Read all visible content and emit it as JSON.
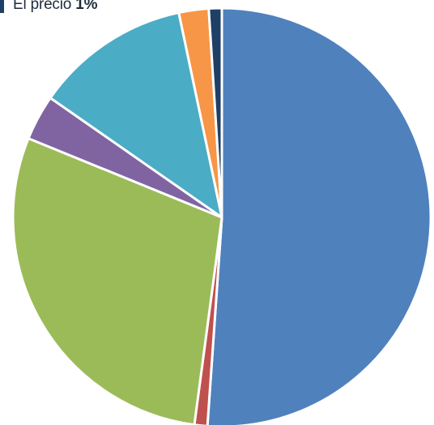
{
  "chart_data": {
    "type": "pie",
    "title": "",
    "start_angle_deg": 0,
    "direction": "clockwise",
    "slices": [
      {
        "value": 51,
        "color": "#4f81bd"
      },
      {
        "value": 1,
        "color": "#c0504d"
      },
      {
        "value": 29,
        "color": "#9bbb59"
      },
      {
        "value": 3.5,
        "color": "#8064a2"
      },
      {
        "value": 12,
        "color": "#4bacc6"
      },
      {
        "value": 2.3,
        "color": "#f79646"
      },
      {
        "value": 1,
        "color": "#1f3f66"
      }
    ],
    "legend": [
      {
        "label": "El precio",
        "value_label": "1%",
        "color": "#1f3f66"
      }
    ]
  }
}
